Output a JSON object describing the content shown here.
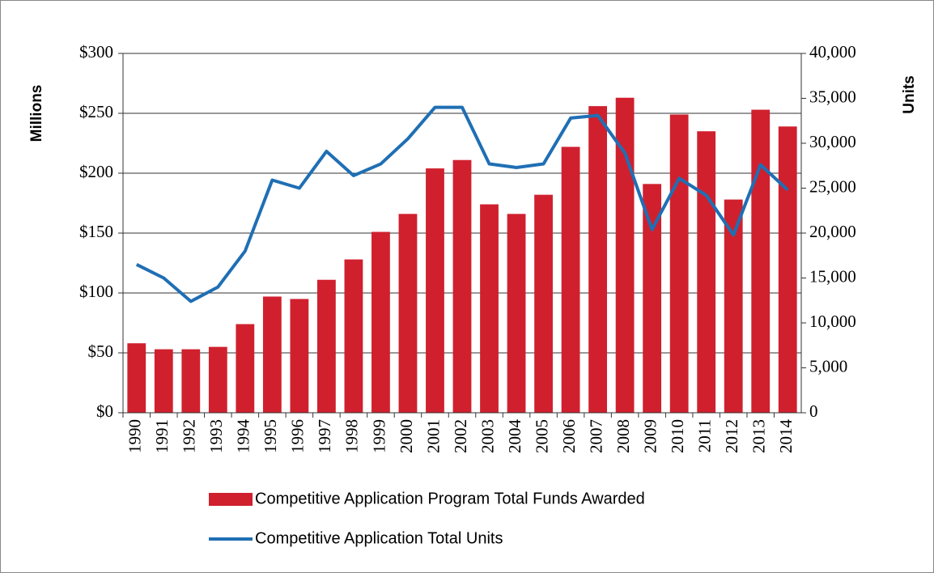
{
  "chart_data": {
    "type": "bar-line",
    "categories": [
      "1990",
      "1991",
      "1992",
      "1993",
      "1994",
      "1995",
      "1996",
      "1997",
      "1998",
      "1999",
      "2000",
      "2001",
      "2002",
      "2003",
      "2004",
      "2005",
      "2006",
      "2007",
      "2008",
      "2009",
      "2010",
      "2011",
      "2012",
      "2013",
      "2014"
    ],
    "series": [
      {
        "name": "Competitive Application Program Total Funds Awarded",
        "type": "bar",
        "color": "#d0202e",
        "values": [
          58,
          53,
          53,
          55,
          74,
          97,
          95,
          111,
          128,
          151,
          166,
          204,
          211,
          174,
          166,
          182,
          222,
          256,
          263,
          191,
          249,
          235,
          178,
          253,
          239
        ]
      },
      {
        "name": "Competitive Application Total Units",
        "type": "line",
        "axis": "y2",
        "color": "#1f6fb4",
        "values": [
          16500,
          15000,
          12400,
          14000,
          18000,
          25900,
          25000,
          29100,
          26400,
          27700,
          30500,
          34000,
          34000,
          27700,
          27300,
          27700,
          32800,
          33100,
          28900,
          20400,
          26100,
          24200,
          19800,
          27600,
          24800
        ]
      }
    ],
    "y_label": "Millions",
    "y2_label": "Units",
    "ylim": [
      0,
      300
    ],
    "yticks": [
      {
        "value": 0,
        "label": "$0"
      },
      {
        "value": 50,
        "label": "$50"
      },
      {
        "value": 100,
        "label": "$100"
      },
      {
        "value": 150,
        "label": "$150"
      },
      {
        "value": 200,
        "label": "$200"
      },
      {
        "value": 250,
        "label": "$250"
      },
      {
        "value": 300,
        "label": "$300"
      }
    ],
    "y2lim": [
      0,
      40000
    ],
    "y2ticks": [
      0,
      {
        "value": 5000,
        "label": "5,000"
      },
      {
        "value": 10000,
        "label": "10,000"
      },
      {
        "value": 15000,
        "label": "15,000"
      },
      {
        "value": 20000,
        "label": "20,000"
      },
      {
        "value": 25000,
        "label": "25,000"
      },
      {
        "value": 30000,
        "label": "30,000"
      },
      {
        "value": 35000,
        "label": "35,000"
      },
      {
        "value": 40000,
        "label": "40,000"
      }
    ],
    "grid": true,
    "legend": "bottom"
  }
}
